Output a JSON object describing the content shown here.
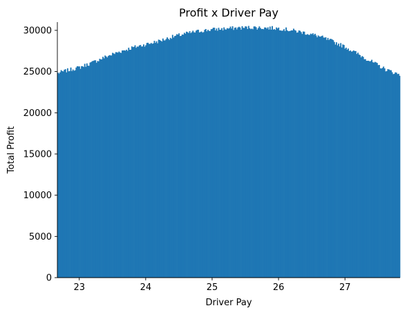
{
  "chart_data": {
    "type": "bar",
    "title": "Profit x Driver Pay",
    "xlabel": "Driver Pay",
    "ylabel": "Total Profit",
    "xlim": [
      22.67,
      27.83
    ],
    "ylim": [
      0,
      31000
    ],
    "xticks": [
      23,
      24,
      25,
      26,
      27
    ],
    "xtick_labels": [
      "23",
      "24",
      "25",
      "26",
      "27"
    ],
    "yticks": [
      0,
      5000,
      10000,
      15000,
      20000,
      25000,
      30000
    ],
    "ytick_labels": [
      "0",
      "5000",
      "10000",
      "15000",
      "20000",
      "25000",
      "30000"
    ],
    "bar_color": "#1f77b4",
    "grid": false,
    "legend": "none",
    "series": [
      {
        "x": [
          22.67,
          22.8,
          23.0,
          23.2,
          23.4,
          23.6,
          23.8,
          24.0,
          24.2,
          24.4,
          24.6,
          24.8,
          25.0,
          25.2,
          25.4,
          25.6,
          25.8,
          26.0,
          26.2,
          26.4,
          26.6,
          26.8,
          27.0,
          27.2,
          27.4,
          27.6,
          27.83
        ],
        "values": [
          24800,
          25100,
          25500,
          26100,
          26800,
          27400,
          27900,
          28300,
          28700,
          29200,
          29600,
          29900,
          30100,
          30200,
          30300,
          30350,
          30300,
          30250,
          30000,
          29700,
          29300,
          28700,
          28000,
          27100,
          26200,
          25300,
          24600
        ]
      }
    ]
  }
}
